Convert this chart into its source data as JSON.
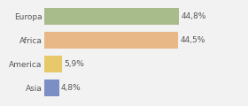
{
  "categories": [
    "Europa",
    "Africa",
    "America",
    "Asia"
  ],
  "values": [
    44.8,
    44.5,
    5.9,
    4.8
  ],
  "labels": [
    "44,8%",
    "44,5%",
    "5,9%",
    "4,8%"
  ],
  "bar_colors": [
    "#a8bb8a",
    "#e8b887",
    "#e8c96a",
    "#7b8fc4"
  ],
  "background_color": "#f2f2f2",
  "xlim": [
    0,
    58
  ],
  "figsize": [
    2.8,
    1.2
  ],
  "dpi": 100,
  "label_fontsize": 6.5,
  "ytick_fontsize": 6.5
}
